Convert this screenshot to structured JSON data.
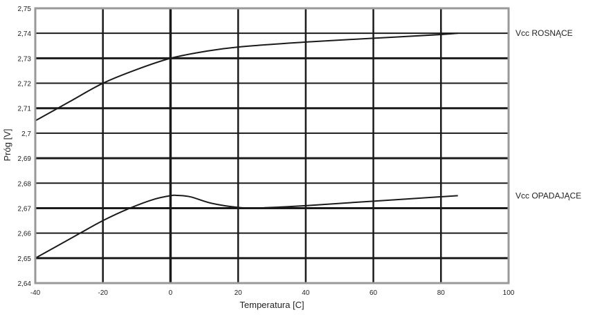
{
  "chart_data": {
    "type": "line",
    "title": "",
    "xlabel": "Temperatura [C]",
    "ylabel": "Próg [V]",
    "xlim": [
      -40,
      100
    ],
    "ylim": [
      2.64,
      2.75
    ],
    "x_ticks": [
      -40,
      -20,
      0,
      20,
      40,
      60,
      80,
      100
    ],
    "x_tick_labels": [
      "-40",
      "-20",
      "0",
      "20",
      "40",
      "60",
      "80",
      "100"
    ],
    "y_ticks": [
      2.64,
      2.65,
      2.66,
      2.67,
      2.68,
      2.69,
      2.7,
      2.71,
      2.72,
      2.73,
      2.74,
      2.75
    ],
    "y_tick_labels": [
      "2,64",
      "2,65",
      "2,66",
      "2,67",
      "2,68",
      "2,69",
      "2,7",
      "2,71",
      "2,72",
      "2,73",
      "2,74",
      "2,75"
    ],
    "grid": true,
    "legend": "right",
    "series": [
      {
        "name": "Vcc ROSNĄCE",
        "x": [
          -40,
          -30,
          -20,
          -10,
          0,
          10,
          20,
          40,
          60,
          80,
          85
        ],
        "y": [
          2.705,
          2.7125,
          2.72,
          2.7255,
          2.73,
          2.7327,
          2.7345,
          2.7365,
          2.738,
          2.7395,
          2.74
        ]
      },
      {
        "name": "Vcc OPADAJĄCE",
        "x": [
          -40,
          -30,
          -20,
          -12,
          -5,
          0,
          2,
          6,
          12,
          20,
          26,
          40,
          60,
          85
        ],
        "y": [
          2.65,
          2.6575,
          2.665,
          2.67,
          2.6735,
          2.675,
          2.6751,
          2.6745,
          2.672,
          2.6703,
          2.6701,
          2.671,
          2.6728,
          2.675
        ]
      }
    ]
  }
}
